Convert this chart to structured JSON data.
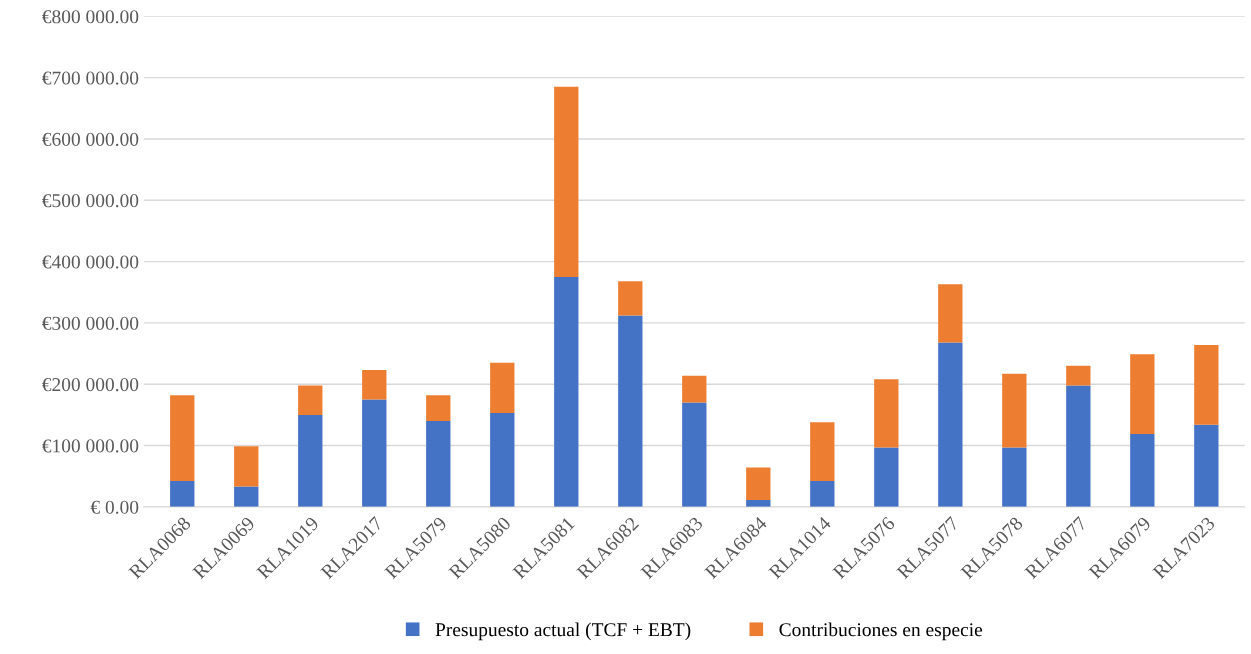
{
  "chart_data": {
    "type": "bar",
    "stacked": true,
    "categories": [
      "RLA0068",
      "RLA0069",
      "RLA1019",
      "RLA2017",
      "RLA5079",
      "RLA5080",
      "RLA5081",
      "RLA6082",
      "RLA6083",
      "RLA6084",
      "RLA1014",
      "RLA5076",
      "RLA5077",
      "RLA5078",
      "RLA6077",
      "RLA6079",
      "RLA7023"
    ],
    "series": [
      {
        "name": "Presupuesto actual (TCF + EBT)",
        "color": "#4472c4",
        "values": [
          42000,
          33000,
          150000,
          175000,
          140000,
          153000,
          375000,
          312000,
          170000,
          11000,
          42000,
          97000,
          268000,
          97000,
          198000,
          119000,
          134000
        ]
      },
      {
        "name": "Contribuciones en especie",
        "color": "#ed7d31",
        "values": [
          140000,
          66000,
          48000,
          48000,
          42000,
          82000,
          310000,
          56000,
          44000,
          53000,
          96000,
          111000,
          95000,
          120000,
          32000,
          130000,
          130000
        ]
      }
    ],
    "ylim": [
      0,
      800000
    ],
    "yticks": [
      {
        "value": 0,
        "label": "€ 0.00"
      },
      {
        "value": 100000,
        "label": "€100 000.00"
      },
      {
        "value": 200000,
        "label": "€200 000.00"
      },
      {
        "value": 300000,
        "label": "€300 000.00"
      },
      {
        "value": 400000,
        "label": "€400 000.00"
      },
      {
        "value": 500000,
        "label": "€500 000.00"
      },
      {
        "value": 600000,
        "label": "€600 000.00"
      },
      {
        "value": 700000,
        "label": "€700 000.00"
      },
      {
        "value": 800000,
        "label": "€800 000.00"
      }
    ],
    "grid": "y",
    "legend": "bottom"
  }
}
